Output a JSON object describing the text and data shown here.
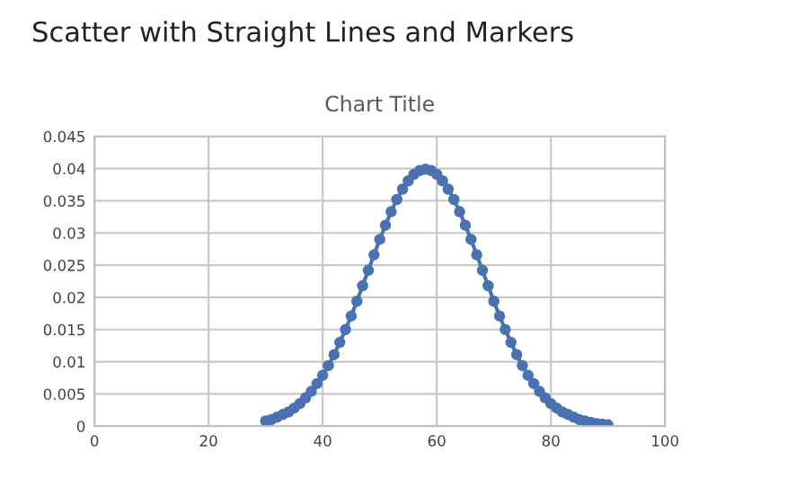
{
  "chart_data": {
    "type": "line",
    "title": "Scatter with Straight Lines and Markers",
    "subtitle": "Chart Title",
    "x": [
      30,
      31,
      32,
      33,
      34,
      35,
      36,
      37,
      38,
      39,
      40,
      41,
      42,
      43,
      44,
      45,
      46,
      47,
      48,
      49,
      50,
      51,
      52,
      53,
      54,
      55,
      56,
      57,
      58,
      59,
      60,
      61,
      62,
      63,
      64,
      65,
      66,
      67,
      68,
      69,
      70,
      71,
      72,
      73,
      74,
      75,
      76,
      77,
      78,
      79,
      80,
      81,
      82,
      83,
      84,
      85,
      86,
      87,
      88,
      89,
      90
    ],
    "series": [
      {
        "color": "#4a72b0",
        "values": [
          0.0008,
          0.001,
          0.0014,
          0.0018,
          0.0022,
          0.0028,
          0.0035,
          0.0044,
          0.0054,
          0.0066,
          0.0079,
          0.0094,
          0.0111,
          0.013,
          0.015,
          0.0171,
          0.0194,
          0.0218,
          0.0242,
          0.0266,
          0.029,
          0.0312,
          0.0333,
          0.0352,
          0.0368,
          0.0381,
          0.0391,
          0.0397,
          0.0399,
          0.0397,
          0.0391,
          0.0381,
          0.0368,
          0.0352,
          0.0333,
          0.0312,
          0.029,
          0.0266,
          0.0242,
          0.0218,
          0.0194,
          0.0171,
          0.015,
          0.013,
          0.0111,
          0.0094,
          0.0079,
          0.0066,
          0.0054,
          0.0044,
          0.0035,
          0.0028,
          0.0022,
          0.0018,
          0.0014,
          0.001,
          0.0008,
          0.0006,
          0.0004,
          0.0003,
          0.0002
        ]
      }
    ],
    "xlim": [
      0,
      100
    ],
    "xticks": [
      0,
      20,
      40,
      60,
      80,
      100
    ],
    "ylim": [
      0,
      0.045
    ],
    "yticks": [
      0,
      0.005,
      0.01,
      0.015,
      0.02,
      0.025,
      0.03,
      0.035,
      0.04,
      0.045
    ],
    "grid": true,
    "marker": "circle",
    "line_style": "solid",
    "legend": false
  }
}
